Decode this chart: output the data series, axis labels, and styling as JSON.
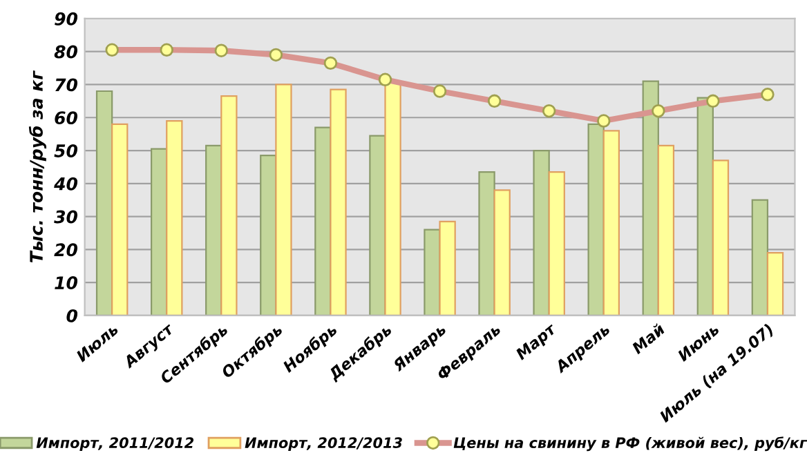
{
  "chart_data": {
    "type": "bar",
    "ylabel": "Тыс. тонн/руб за кг",
    "categories": [
      "Июль",
      "Август",
      "Сентябрь",
      "Октябрь",
      "Ноябрь",
      "Декабрь",
      "Январь",
      "Февраль",
      "Март",
      "Апрель",
      "Май",
      "Июнь",
      "Июль (на 19.07)"
    ],
    "series": [
      {
        "name": "Импорт, 2011/2012",
        "color": "#c3d69b",
        "values": [
          68,
          50.5,
          51.5,
          48.5,
          57,
          54.5,
          26,
          43.5,
          50,
          58,
          71,
          66,
          35
        ]
      },
      {
        "name": "Импорт, 2012/2013",
        "color": "#ffff99",
        "values": [
          58,
          59,
          66.5,
          70,
          68.5,
          71,
          28.5,
          38,
          43.5,
          56,
          51.5,
          47,
          19
        ]
      },
      {
        "name": "Цены на свинину в РФ (живой вес), руб/кг",
        "color": "#d99590",
        "type": "line",
        "marker": "circle",
        "values": [
          80.5,
          80.5,
          80.3,
          79,
          76.5,
          71.5,
          68,
          65,
          62,
          59,
          62,
          65,
          67
        ]
      }
    ],
    "ylim": [
      0,
      90
    ],
    "yticks": [
      0,
      10,
      20,
      30,
      40,
      50,
      60,
      70,
      80,
      90
    ],
    "grid": "y",
    "legend": "bottom"
  }
}
